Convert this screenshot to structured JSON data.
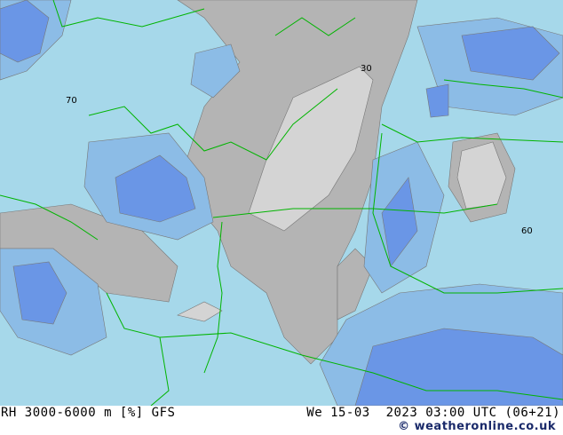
{
  "map": {
    "parameter": "RH 3000-6000 m [%] GFS",
    "datetime": "We 15-03  2023 03:00 UTC (06+21)",
    "credit": "© weatheronline.co.uk",
    "contour_labels": [
      "70",
      "30",
      "60"
    ],
    "colors": {
      "low_rh_light_gray": "#d4d4d4",
      "gray": "#b4b4b4",
      "light_blue": "#a6d8ea",
      "mid_blue": "#8cbce6",
      "dark_blue": "#6a96e6",
      "borders": "#00b400"
    }
  }
}
